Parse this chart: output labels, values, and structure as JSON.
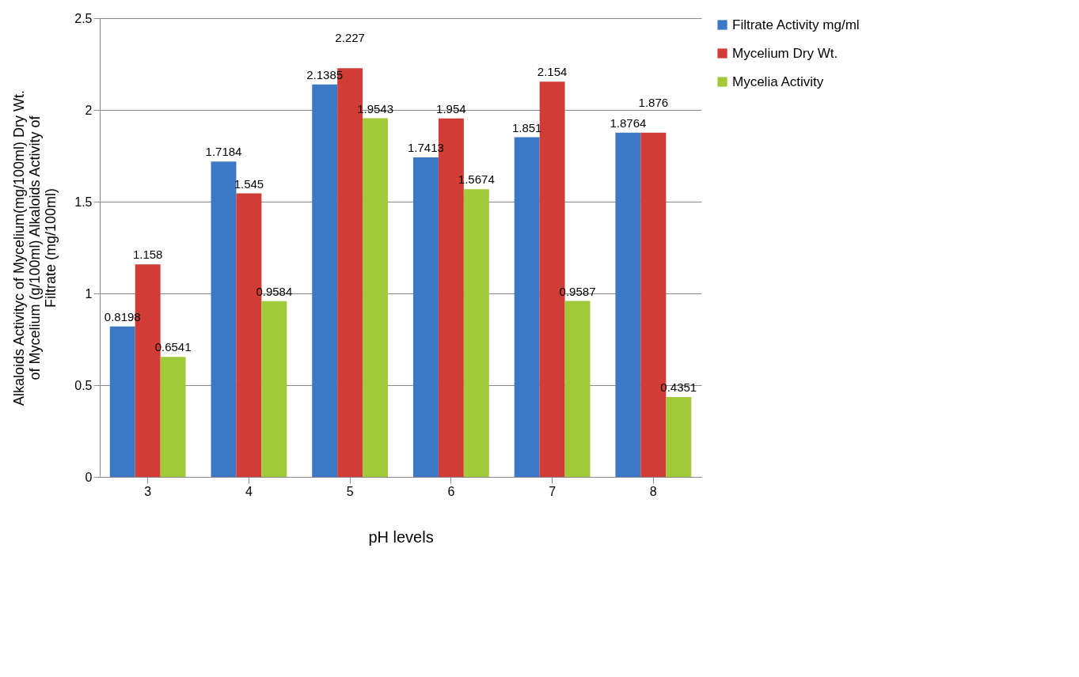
{
  "chart_data": {
    "type": "bar",
    "xlabel": "pH levels",
    "ylabel": "Alkaloids Activityc of Mycelium(mg/100ml) Dry Wt. of Mycelium (g/100ml) Alkaloids Activity of Filtrate (mg/100ml)",
    "categories": [
      "3",
      "4",
      "5",
      "6",
      "7",
      "8"
    ],
    "series": [
      {
        "name": "Filtrate Activity mg/ml",
        "color": "#3b78c6",
        "values": [
          0.8198,
          1.7184,
          2.1385,
          1.7413,
          1.851,
          1.8764
        ]
      },
      {
        "name": "Mycelium Dry Wt.",
        "color": "#d23c36",
        "values": [
          1.158,
          1.545,
          2.227,
          1.954,
          2.154,
          1.876
        ]
      },
      {
        "name": "Mycelia Activity",
        "color": "#a2c93a",
        "values": [
          0.6541,
          0.9584,
          1.9543,
          1.5674,
          0.9587,
          0.4351
        ]
      }
    ],
    "ylim": [
      0,
      2.5
    ],
    "yticks": [
      0,
      0.5,
      1,
      1.5,
      2,
      2.5
    ],
    "grid": "y",
    "legend": "right",
    "data_labels": true
  }
}
